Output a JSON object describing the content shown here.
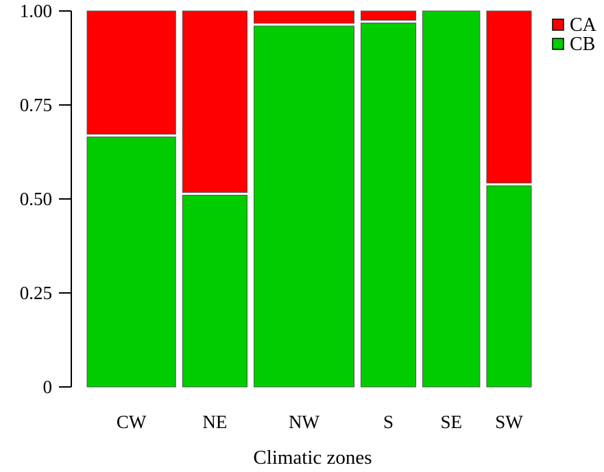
{
  "chart_data": {
    "type": "bar",
    "stacked": true,
    "variable_width": true,
    "title": "",
    "xlabel": "Climatic zones",
    "ylabel": "",
    "ylim": [
      0,
      1
    ],
    "yticks": [
      "0",
      "0.25",
      "0.50",
      "0.75",
      "1.00"
    ],
    "ytick_values": [
      0,
      0.25,
      0.5,
      0.75,
      1.0
    ],
    "categories": [
      "CW",
      "NE",
      "NW",
      "S",
      "SE",
      "SW"
    ],
    "relative_widths": [
      0.155,
      0.113,
      0.175,
      0.096,
      0.1,
      0.078
    ],
    "series": [
      {
        "name": "CB",
        "color": "#00cc00",
        "values": [
          0.665,
          0.51,
          0.96,
          0.968,
          1.0,
          0.535
        ]
      },
      {
        "name": "CA",
        "color": "#ff0000",
        "values": [
          0.335,
          0.49,
          0.04,
          0.032,
          0.0,
          0.465
        ]
      }
    ],
    "legend": {
      "position": "top-right",
      "order": [
        "CA",
        "CB"
      ]
    },
    "grid": false
  }
}
